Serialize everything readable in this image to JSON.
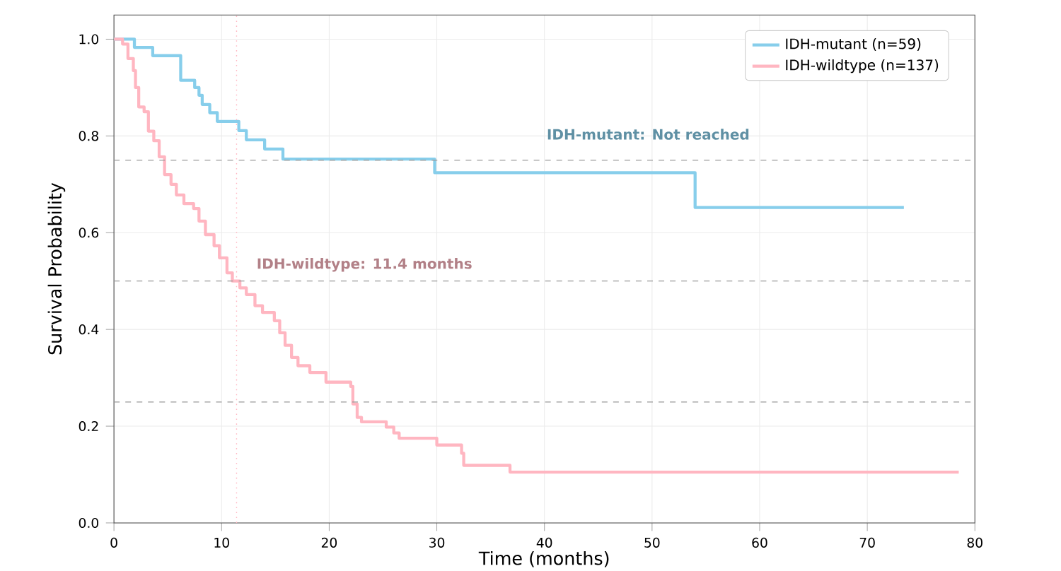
{
  "chart_data": {
    "type": "step",
    "xlabel": "Time (months)",
    "ylabel": "Survival Probability",
    "xlim": [
      0,
      80
    ],
    "ylim": [
      0,
      1.05
    ],
    "xticks": [
      0,
      10,
      20,
      30,
      40,
      50,
      60,
      70,
      80
    ],
    "yticks": [
      {
        "value": 0,
        "label": "0.0"
      },
      {
        "value": 0.2,
        "label": "0.2"
      },
      {
        "value": 0.4,
        "label": "0.4"
      },
      {
        "value": 0.6,
        "label": "0.6"
      },
      {
        "value": 0.8,
        "label": "0.8"
      },
      {
        "value": 1,
        "label": "1.0"
      }
    ],
    "grid": true,
    "legend": "top right",
    "marker": "none",
    "line_style": "solid",
    "series": [
      {
        "name": "IDH-mutant (n=59)",
        "color": "#87ceeb",
        "x": [
          0,
          1.9,
          3.6,
          6.2,
          7.5,
          7.9,
          8.2,
          8.9,
          9.6,
          11.6,
          12.3,
          14.0,
          15.7,
          29.8,
          54.0,
          73.4
        ],
        "values": [
          1.0,
          0.983,
          0.966,
          0.915,
          0.9,
          0.884,
          0.865,
          0.848,
          0.83,
          0.811,
          0.792,
          0.773,
          0.752,
          0.724,
          0.652,
          0.652
        ]
      },
      {
        "name": "IDH-wildtype (n=137)",
        "color": "#ffb6c1",
        "x": [
          0,
          0.8,
          1.3,
          1.8,
          2.0,
          2.3,
          2.8,
          3.2,
          3.7,
          4.2,
          4.7,
          5.3,
          5.8,
          6.5,
          7.4,
          7.9,
          8.5,
          9.3,
          9.8,
          10.5,
          11.0,
          11.7,
          12.3,
          13.1,
          13.8,
          14.9,
          15.4,
          15.9,
          16.5,
          17.1,
          18.2,
          19.7,
          22.0,
          22.2,
          22.6,
          23.0,
          25.3,
          26.0,
          26.5,
          30.0,
          32.3,
          32.5,
          36.8,
          78.5
        ],
        "values": [
          1.0,
          0.99,
          0.96,
          0.935,
          0.9,
          0.86,
          0.85,
          0.81,
          0.79,
          0.757,
          0.72,
          0.7,
          0.678,
          0.66,
          0.65,
          0.624,
          0.596,
          0.573,
          0.548,
          0.517,
          0.5,
          0.486,
          0.472,
          0.449,
          0.435,
          0.418,
          0.393,
          0.367,
          0.342,
          0.325,
          0.311,
          0.291,
          0.282,
          0.246,
          0.218,
          0.209,
          0.198,
          0.186,
          0.175,
          0.161,
          0.144,
          0.119,
          0.105,
          0.105
        ]
      }
    ],
    "ref_lines": [
      {
        "axis": "y",
        "value": 0.75,
        "color": "#999999",
        "line_style": "dashed"
      },
      {
        "axis": "y",
        "value": 0.5,
        "color": "#999999",
        "line_style": "dashed"
      },
      {
        "axis": "y",
        "value": 0.25,
        "color": "#999999",
        "line_style": "dashed"
      },
      {
        "axis": "x",
        "value": 11.4,
        "color": "#ffb6c1",
        "line_style": "dotted"
      }
    ],
    "annotations": [
      "IDH-mutant: Not reached",
      "IDH-wildtype: 11.4 months"
    ]
  }
}
